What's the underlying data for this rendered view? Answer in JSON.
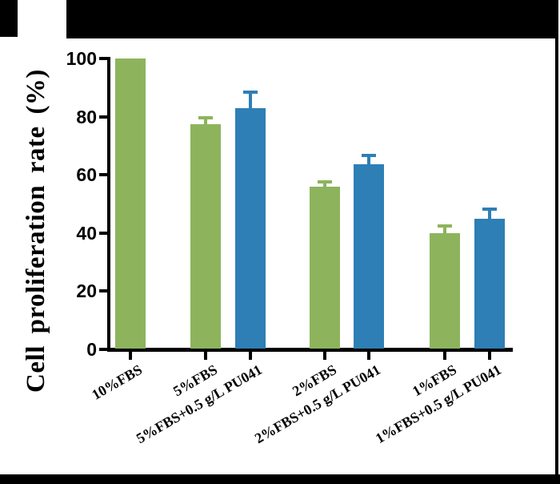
{
  "page": {
    "background": "#ffffff",
    "frame_color": "#000000"
  },
  "chart_data": {
    "type": "bar",
    "title": "",
    "ylabel": "Cell proliferation rate (%)",
    "xlabel": "",
    "ylim": [
      0,
      100
    ],
    "yticks": [
      0,
      20,
      40,
      60,
      80,
      100
    ],
    "grid": false,
    "legend": "none",
    "categories": [
      "10%FBS",
      "5%FBS",
      "5%FBS+0.5 g/L PU041",
      "2%FBS",
      "2%FBS+0.5 g/L PU041",
      "1%FBS",
      "1%FBS+0.5 g/L PU041"
    ],
    "values": [
      100,
      77.5,
      83,
      56,
      63.5,
      40,
      45
    ],
    "errors_sd_upper": [
      0,
      2,
      5.5,
      1.7,
      3.2,
      2.3,
      3.2
    ],
    "bar_colors": [
      "#8db45c",
      "#8db45c",
      "#2e7fb5",
      "#8db45c",
      "#2e7fb5",
      "#8db45c",
      "#2e7fb5"
    ],
    "palette": {
      "fbs_only_green": "#8db45c",
      "with_pu041_blue": "#2e7fb5",
      "axis_black": "#000000"
    }
  }
}
